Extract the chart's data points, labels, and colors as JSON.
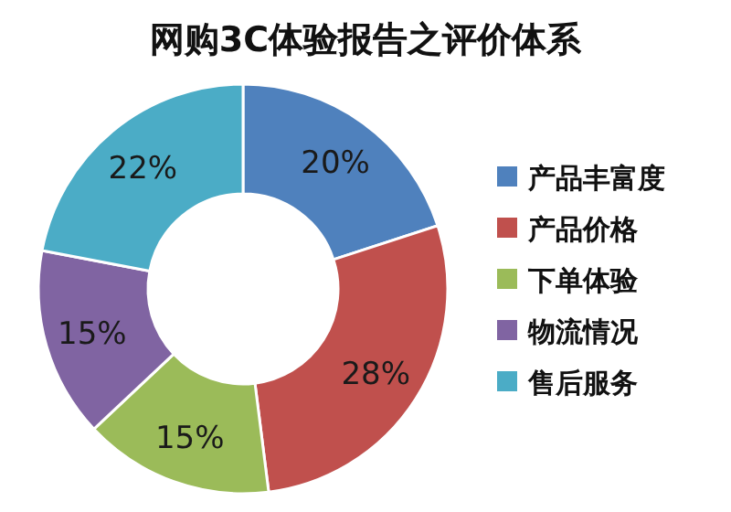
{
  "chart_data": {
    "type": "donut",
    "title": "网购3C体验报告之评价体系",
    "categories": [
      "产品丰富度",
      "产品价格",
      "下单体验",
      "物流情况",
      "售后服务"
    ],
    "values": [
      20,
      28,
      15,
      15,
      22
    ],
    "value_labels": [
      "20%",
      "28%",
      "15%",
      "15%",
      "22%"
    ],
    "colors": [
      "#4f81bd",
      "#c0504d",
      "#9bbb59",
      "#8064a2",
      "#4bacc6"
    ],
    "legend": "right"
  }
}
